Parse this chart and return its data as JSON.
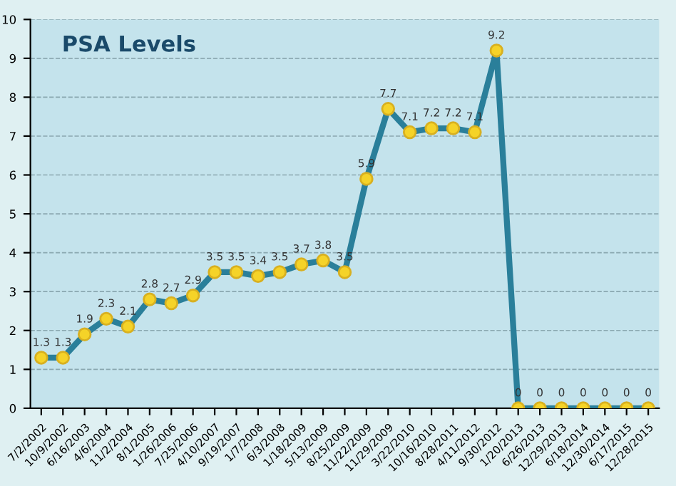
{
  "chart_data": {
    "type": "line",
    "title": "PSA Levels",
    "categories": [
      "7/2/2002",
      "10/9/2002",
      "6/16/2003",
      "4/6/2004",
      "11/2/2004",
      "8/1/2005",
      "1/26/2006",
      "7/25/2006",
      "4/10/2007",
      "9/19/2007",
      "1/7/2008",
      "6/3/2008",
      "1/18/2009",
      "5/13/2009",
      "8/25/2009",
      "11/22/2009",
      "11/29/2009",
      "3/22/2010",
      "10/16/2010",
      "8/28/2011",
      "4/11/2012",
      "9/30/2012",
      "1/20/2013",
      "6/26/2013",
      "12/29/2013",
      "6/18/2014",
      "12/30/2014",
      "6/17/2015",
      "12/28/2015"
    ],
    "series": [
      {
        "color": "#2a7f9a",
        "values": [
          1.3,
          1.3,
          1.9,
          2.3,
          2.1,
          2.8,
          2.7,
          2.9,
          3.5,
          3.5,
          3.4,
          3.5,
          3.7,
          3.8,
          3.5,
          5.9,
          7.7,
          7.1,
          7.2,
          7.2,
          7.1,
          9.2,
          0,
          0,
          0,
          0,
          0,
          0,
          0
        ]
      }
    ],
    "ylim": [
      0,
      10
    ],
    "yticks": [
      0,
      1,
      2,
      3,
      4,
      5,
      6,
      7,
      8,
      9,
      10
    ],
    "grid": "y",
    "marker": "circle",
    "line_style": "solid",
    "data_labels": true
  }
}
